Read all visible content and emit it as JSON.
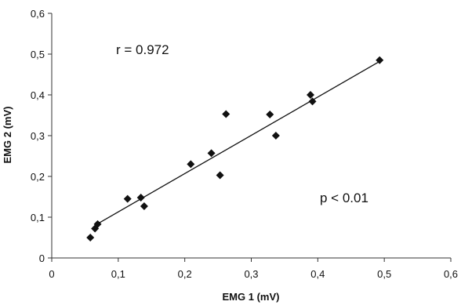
{
  "chart_data": {
    "type": "scatter",
    "xlabel": "EMG 1 (mV)",
    "ylabel": "EMG 2 (mV)",
    "xlim": [
      0,
      0.6
    ],
    "ylim": [
      0,
      0.6
    ],
    "x_ticks": [
      "0",
      "0,1",
      "0,2",
      "0,3",
      "0,4",
      "0,5",
      "0,6"
    ],
    "y_ticks": [
      "0",
      "0,1",
      "0,2",
      "0,3",
      "0,4",
      "0,5",
      "0,6"
    ],
    "grid": false,
    "legend": "none",
    "marker": "diamond",
    "points": [
      {
        "x": 0.058,
        "y": 0.05
      },
      {
        "x": 0.065,
        "y": 0.072
      },
      {
        "x": 0.069,
        "y": 0.083
      },
      {
        "x": 0.114,
        "y": 0.145
      },
      {
        "x": 0.134,
        "y": 0.148
      },
      {
        "x": 0.139,
        "y": 0.127
      },
      {
        "x": 0.209,
        "y": 0.23
      },
      {
        "x": 0.24,
        "y": 0.257
      },
      {
        "x": 0.253,
        "y": 0.203
      },
      {
        "x": 0.262,
        "y": 0.353
      },
      {
        "x": 0.328,
        "y": 0.352
      },
      {
        "x": 0.337,
        "y": 0.3
      },
      {
        "x": 0.389,
        "y": 0.4
      },
      {
        "x": 0.392,
        "y": 0.384
      },
      {
        "x": 0.493,
        "y": 0.485
      }
    ],
    "trendline": {
      "x": [
        0.067,
        0.493
      ],
      "y": [
        0.082,
        0.482
      ]
    },
    "annotations": [
      {
        "name": "correlation-annotation",
        "text": "r = 0.972"
      },
      {
        "name": "p-value-annotation",
        "text": "p < 0.01"
      }
    ],
    "colors": {
      "marker": "#111111",
      "line": "#111111",
      "axis": "#333333"
    }
  }
}
